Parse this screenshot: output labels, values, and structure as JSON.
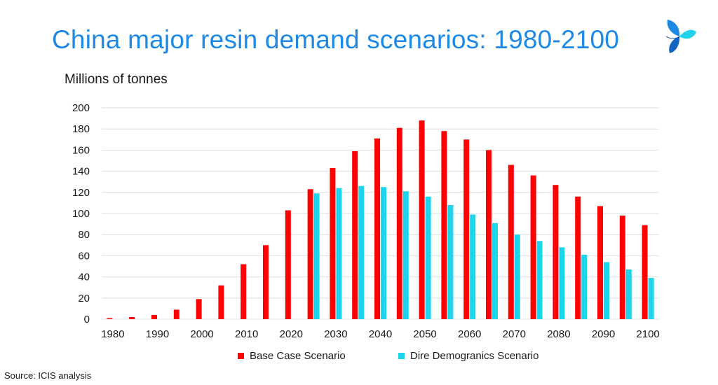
{
  "header": {
    "title": "China major resin demand scenarios: 1980-2100",
    "logo_icon": "icis-logo-icon"
  },
  "footer": {
    "source": "Source: ICIS analysis"
  },
  "colors": {
    "base": "#ff0000",
    "dire": "#1ed4ec",
    "grid": "#d9dde3",
    "title": "#1e88e5"
  },
  "chart_data": {
    "type": "bar",
    "title": "China major resin demand scenarios: 1980-2100",
    "ylabel": "Millions of tonnes",
    "xlabel": "",
    "ylim": [
      0,
      200
    ],
    "yticks": [
      0,
      20,
      40,
      60,
      80,
      100,
      120,
      140,
      160,
      180,
      200
    ],
    "grid": true,
    "legend": "bottom",
    "categories": [
      1980,
      1985,
      1990,
      1995,
      2000,
      2005,
      2010,
      2015,
      2020,
      2025,
      2030,
      2035,
      2040,
      2045,
      2050,
      2055,
      2060,
      2065,
      2070,
      2075,
      2080,
      2085,
      2090,
      2095,
      2100
    ],
    "xtick_labels": [
      "1980",
      "1990",
      "2000",
      "2010",
      "2020",
      "2030",
      "2040",
      "2050",
      "2060",
      "2070",
      "2080",
      "2090",
      "2100"
    ],
    "series": [
      {
        "name": "Base Case Scenario",
        "color": "#ff0000",
        "values": [
          1,
          2,
          4,
          9,
          19,
          32,
          52,
          70,
          103,
          123,
          143,
          159,
          171,
          181,
          188,
          178,
          170,
          160,
          146,
          136,
          127,
          116,
          107,
          98,
          89
        ]
      },
      {
        "name": "Dire Demogranics Scenario",
        "color": "#1ed4ec",
        "values": [
          null,
          null,
          null,
          null,
          null,
          null,
          null,
          null,
          null,
          119,
          124,
          126,
          125,
          121,
          116,
          108,
          99,
          91,
          80,
          74,
          68,
          61,
          54,
          47,
          39
        ]
      }
    ]
  }
}
